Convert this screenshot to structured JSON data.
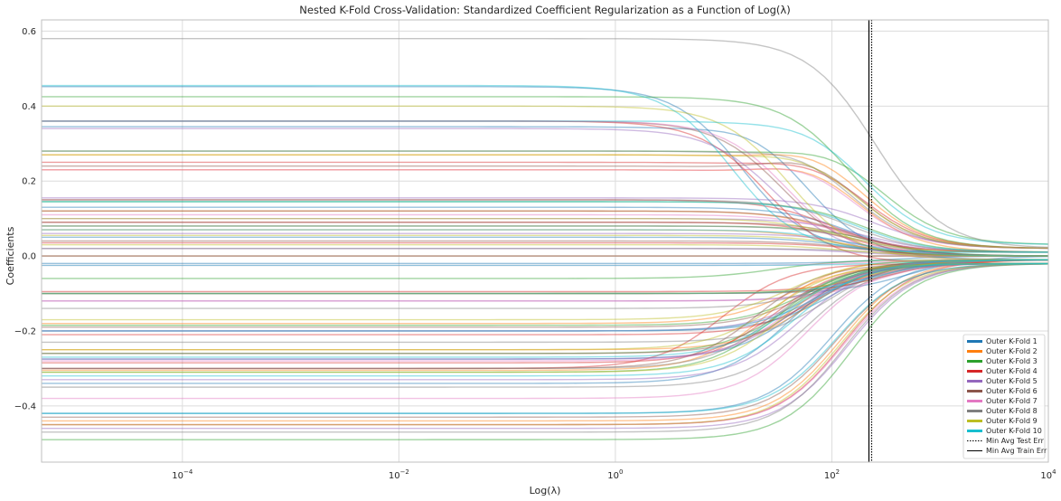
{
  "chart_data": {
    "type": "line",
    "title": "Nested K-Fold Cross-Validation: Standardized Coefficient Regularization as a Function of Log(λ)",
    "xlabel": "Log(λ)",
    "ylabel": "Coefficients",
    "x_scale": "log",
    "xlim": [
      5e-06,
      10000
    ],
    "ylim": [
      -0.55,
      0.63
    ],
    "x_ticks": [
      {
        "value": 0.0001,
        "base": "10",
        "exp": "−4"
      },
      {
        "value": 0.01,
        "base": "10",
        "exp": "−2"
      },
      {
        "value": 1,
        "base": "10",
        "exp": "0"
      },
      {
        "value": 100,
        "base": "10",
        "exp": "2"
      },
      {
        "value": 10000,
        "base": "10",
        "exp": "4"
      }
    ],
    "y_ticks": [
      -0.4,
      -0.2,
      0.0,
      0.2,
      0.4,
      0.6
    ],
    "y_tick_labels": [
      "−0.4",
      "−0.2",
      "0.0",
      "0.2",
      "0.4",
      "0.6"
    ],
    "grid": true,
    "legend_position": "lower-right",
    "vlines": [
      {
        "name": "Min Avg Test Err",
        "x": 233,
        "style": "dotted"
      },
      {
        "name": "Min Avg Train Err",
        "x": 220,
        "style": "solid"
      }
    ],
    "series": [
      {
        "name": "Outer K-Fold 1",
        "color": "#1f77b4",
        "coefficients": [
          {
            "c0": 0.452,
            "end": 0.01,
            "scale": 15
          },
          {
            "c0": 0.345,
            "end": -0.01,
            "scale": 60,
            "bump": 0.02
          },
          {
            "c0": 0.13,
            "end": 0.0,
            "scale": 150
          },
          {
            "c0": 0.05,
            "end": 0.0,
            "scale": 150
          },
          {
            "c0": -0.02,
            "end": 0.0,
            "scale": 300
          },
          {
            "c0": -0.1,
            "end": 0.0,
            "scale": 500
          },
          {
            "c0": -0.2,
            "end": -0.01,
            "scale": 100
          },
          {
            "c0": -0.275,
            "end": -0.02,
            "scale": 50
          },
          {
            "c0": -0.34,
            "end": -0.01,
            "scale": 40
          },
          {
            "c0": -0.42,
            "end": -0.01,
            "scale": 100
          }
        ]
      },
      {
        "name": "Outer K-Fold 2",
        "color": "#ff7f0e",
        "coefficients": [
          {
            "c0": 0.27,
            "end": 0.02,
            "scale": 200,
            "bump": 0.03
          },
          {
            "c0": 0.23,
            "end": 0.01,
            "scale": 180,
            "bump": 0.03
          },
          {
            "c0": 0.12,
            "end": 0.01,
            "scale": 120
          },
          {
            "c0": 0.07,
            "end": 0.0,
            "scale": 120
          },
          {
            "c0": 0.0,
            "end": 0.0,
            "scale": 200
          },
          {
            "c0": -0.1,
            "end": -0.01,
            "scale": 300
          },
          {
            "c0": -0.18,
            "end": -0.02,
            "scale": 40
          },
          {
            "c0": -0.25,
            "end": -0.02,
            "scale": 60
          },
          {
            "c0": -0.305,
            "end": -0.01,
            "scale": 25
          },
          {
            "c0": -0.44,
            "end": -0.01,
            "scale": 120
          }
        ]
      },
      {
        "name": "Outer K-Fold 3",
        "color": "#2ca02c",
        "coefficients": [
          {
            "c0": 0.425,
            "end": 0.02,
            "scale": 150
          },
          {
            "c0": 0.28,
            "end": 0.03,
            "scale": 300,
            "bump": 0.02
          },
          {
            "c0": 0.145,
            "end": 0.01,
            "scale": 200
          },
          {
            "c0": 0.08,
            "end": 0.0,
            "scale": 250
          },
          {
            "c0": 0.0,
            "end": 0.0,
            "scale": 300
          },
          {
            "c0": -0.06,
            "end": -0.01,
            "scale": 30
          },
          {
            "c0": -0.185,
            "end": -0.01,
            "scale": 60
          },
          {
            "c0": -0.26,
            "end": -0.02,
            "scale": 40
          },
          {
            "c0": -0.31,
            "end": -0.02,
            "scale": 30
          },
          {
            "c0": -0.49,
            "end": -0.02,
            "scale": 150
          }
        ]
      },
      {
        "name": "Outer K-Fold 4",
        "color": "#d62728",
        "coefficients": [
          {
            "c0": 0.36,
            "end": -0.02,
            "scale": 25
          },
          {
            "c0": 0.25,
            "end": 0.02,
            "scale": 200,
            "bump": 0.02
          },
          {
            "c0": 0.15,
            "end": 0.01,
            "scale": 100
          },
          {
            "c0": 0.09,
            "end": 0.0,
            "scale": 150
          },
          {
            "c0": 0.035,
            "end": 0.0,
            "scale": 200
          },
          {
            "c0": -0.095,
            "end": -0.01,
            "scale": 250
          },
          {
            "c0": -0.21,
            "end": -0.01,
            "scale": 80
          },
          {
            "c0": -0.285,
            "end": -0.02,
            "scale": 30
          },
          {
            "c0": -0.3,
            "end": -0.02,
            "scale": 10
          },
          {
            "c0": -0.45,
            "end": -0.01,
            "scale": 130
          }
        ]
      },
      {
        "name": "Outer K-Fold 5",
        "color": "#9467bd",
        "coefficients": [
          {
            "c0": 0.34,
            "end": 0.0,
            "scale": 30
          },
          {
            "c0": 0.155,
            "end": 0.02,
            "scale": 250
          },
          {
            "c0": 0.1,
            "end": 0.01,
            "scale": 200
          },
          {
            "c0": 0.06,
            "end": 0.0,
            "scale": 200
          },
          {
            "c0": 0.02,
            "end": 0.0,
            "scale": 150
          },
          {
            "c0": -0.12,
            "end": -0.01,
            "scale": 200
          },
          {
            "c0": -0.2,
            "end": -0.01,
            "scale": 70
          },
          {
            "c0": -0.275,
            "end": -0.02,
            "scale": 45
          },
          {
            "c0": -0.33,
            "end": -0.02,
            "scale": 50
          },
          {
            "c0": -0.46,
            "end": -0.02,
            "scale": 140
          }
        ]
      },
      {
        "name": "Outer K-Fold 6",
        "color": "#8c564b",
        "coefficients": [
          {
            "c0": 0.36,
            "end": 0.0,
            "scale": 35
          },
          {
            "c0": 0.24,
            "end": 0.02,
            "scale": 180,
            "bump": 0.04
          },
          {
            "c0": 0.12,
            "end": 0.01,
            "scale": 130
          },
          {
            "c0": 0.09,
            "end": 0.0,
            "scale": 200
          },
          {
            "c0": 0.04,
            "end": 0.0,
            "scale": 180
          },
          {
            "c0": -0.1,
            "end": -0.01,
            "scale": 300
          },
          {
            "c0": -0.19,
            "end": -0.02,
            "scale": 60
          },
          {
            "c0": -0.26,
            "end": -0.02,
            "scale": 50
          },
          {
            "c0": -0.3,
            "end": -0.02,
            "scale": 20
          },
          {
            "c0": -0.43,
            "end": -0.02,
            "scale": 110
          }
        ]
      },
      {
        "name": "Outer K-Fold 7",
        "color": "#e377c2",
        "coefficients": [
          {
            "c0": 0.36,
            "end": -0.01,
            "scale": 40
          },
          {
            "c0": 0.23,
            "end": 0.02,
            "scale": 160,
            "bump": 0.03
          },
          {
            "c0": 0.11,
            "end": 0.01,
            "scale": 140
          },
          {
            "c0": 0.0,
            "end": 0.0,
            "scale": 180
          },
          {
            "c0": -0.025,
            "end": -0.01,
            "scale": 200
          },
          {
            "c0": -0.12,
            "end": -0.01,
            "scale": 250
          },
          {
            "c0": -0.2,
            "end": -0.01,
            "scale": 80
          },
          {
            "c0": -0.28,
            "end": -0.02,
            "scale": 40
          },
          {
            "c0": -0.38,
            "end": -0.02,
            "scale": 60
          },
          {
            "c0": -0.45,
            "end": -0.02,
            "scale": 130
          }
        ]
      },
      {
        "name": "Outer K-Fold 8",
        "color": "#7f7f7f",
        "coefficients": [
          {
            "c0": 0.58,
            "end": 0.02,
            "scale": 250
          },
          {
            "c0": 0.28,
            "end": 0.02,
            "scale": 150,
            "bump": 0.02
          },
          {
            "c0": 0.15,
            "end": 0.01,
            "scale": 150
          },
          {
            "c0": 0.08,
            "end": 0.0,
            "scale": 200
          },
          {
            "c0": 0.02,
            "end": 0.0,
            "scale": 250
          },
          {
            "c0": -0.14,
            "end": -0.01,
            "scale": 100
          },
          {
            "c0": -0.23,
            "end": -0.01,
            "scale": 90
          },
          {
            "c0": -0.3,
            "end": -0.02,
            "scale": 30
          },
          {
            "c0": -0.35,
            "end": -0.02,
            "scale": 60
          },
          {
            "c0": -0.47,
            "end": -0.02,
            "scale": 130
          }
        ]
      },
      {
        "name": "Outer K-Fold 9",
        "color": "#bcbd22",
        "coefficients": [
          {
            "c0": 0.4,
            "end": -0.01,
            "scale": 40
          },
          {
            "c0": 0.27,
            "end": 0.02,
            "scale": 170,
            "bump": 0.02
          },
          {
            "c0": 0.1,
            "end": 0.01,
            "scale": 120
          },
          {
            "c0": 0.055,
            "end": 0.0,
            "scale": 160
          },
          {
            "c0": 0.03,
            "end": 0.0,
            "scale": 140
          },
          {
            "c0": -0.1,
            "end": -0.01,
            "scale": 200
          },
          {
            "c0": -0.17,
            "end": -0.01,
            "scale": 40
          },
          {
            "c0": -0.25,
            "end": -0.02,
            "scale": 30
          },
          {
            "c0": -0.31,
            "end": -0.02,
            "scale": 35
          },
          {
            "c0": -0.45,
            "end": -0.02,
            "scale": 120
          }
        ]
      },
      {
        "name": "Outer K-Fold 10",
        "color": "#17becf",
        "coefficients": [
          {
            "c0": 0.455,
            "end": 0.01,
            "scale": 12
          },
          {
            "c0": 0.36,
            "end": 0.03,
            "scale": 200,
            "bump": 0.01
          },
          {
            "c0": 0.145,
            "end": 0.01,
            "scale": 180
          },
          {
            "c0": 0.07,
            "end": 0.0,
            "scale": 150
          },
          {
            "c0": -0.025,
            "end": -0.01,
            "scale": 400
          },
          {
            "c0": -0.1,
            "end": -0.01,
            "scale": 250
          },
          {
            "c0": -0.2,
            "end": -0.01,
            "scale": 80
          },
          {
            "c0": -0.27,
            "end": -0.02,
            "scale": 40
          },
          {
            "c0": -0.32,
            "end": -0.02,
            "scale": 45
          },
          {
            "c0": -0.42,
            "end": -0.02,
            "scale": 110
          }
        ]
      }
    ]
  }
}
